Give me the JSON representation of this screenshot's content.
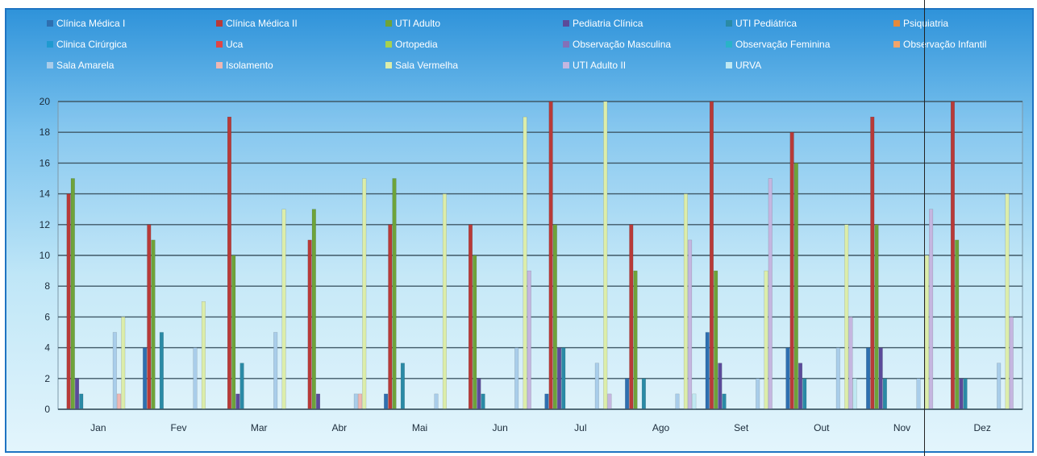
{
  "chart_data": {
    "type": "bar",
    "title": "",
    "xlabel": "",
    "ylabel": "",
    "ylim": [
      0,
      20
    ],
    "yticks": [
      0,
      2,
      4,
      6,
      8,
      10,
      12,
      14,
      16,
      18,
      20
    ],
    "grid": true,
    "legend_position": "top",
    "categories": [
      "Jan",
      "Fev",
      "Mar",
      "Abr",
      "Mai",
      "Jun",
      "Jul",
      "Ago",
      "Set",
      "Out",
      "Nov",
      "Dez"
    ],
    "series": [
      {
        "name": "Clínica Médica I",
        "color": "#2e6fb0",
        "values": [
          0,
          4,
          0,
          0,
          1,
          0,
          1,
          2,
          5,
          4,
          4,
          0
        ]
      },
      {
        "name": "Clínica Médica II",
        "color": "#b83a38",
        "values": [
          14,
          12,
          19,
          11,
          12,
          12,
          20,
          12,
          20,
          18,
          19,
          20
        ]
      },
      {
        "name": "UTI Adulto",
        "color": "#6ea33a",
        "values": [
          15,
          11,
          10,
          13,
          15,
          10,
          12,
          9,
          9,
          16,
          12,
          11
        ]
      },
      {
        "name": "Pediatria Clínica",
        "color": "#5b4a9a",
        "values": [
          2,
          0,
          1,
          1,
          0,
          2,
          4,
          0,
          3,
          3,
          4,
          2
        ]
      },
      {
        "name": "UTI  Pediátrica",
        "color": "#2a8aa6",
        "values": [
          1,
          5,
          3,
          0,
          3,
          1,
          4,
          2,
          1,
          2,
          2,
          2
        ]
      },
      {
        "name": "Psiquiatria",
        "color": "#e58a3c",
        "values": [
          0,
          0,
          0,
          0,
          0,
          0,
          0,
          0,
          0,
          0,
          0,
          0
        ]
      },
      {
        "name": "Clinica Cirúrgica",
        "color": "#1f9ad0",
        "values": [
          0,
          0,
          0,
          0,
          0,
          0,
          0,
          0,
          0,
          0,
          0,
          0
        ]
      },
      {
        "name": "Uca",
        "color": "#e04545",
        "values": [
          0,
          0,
          0,
          0,
          0,
          0,
          0,
          0,
          0,
          0,
          0,
          0
        ]
      },
      {
        "name": "Ortopedia",
        "color": "#a7d14f",
        "values": [
          0,
          0,
          0,
          0,
          0,
          0,
          0,
          0,
          0,
          0,
          0,
          0
        ]
      },
      {
        "name": "Observação Masculina",
        "color": "#8470b8",
        "values": [
          0,
          0,
          0,
          0,
          0,
          0,
          0,
          0,
          0,
          0,
          0,
          0
        ]
      },
      {
        "name": "Observação Feminina",
        "color": "#29b3c8",
        "values": [
          0,
          0,
          0,
          0,
          0,
          0,
          0,
          0,
          0,
          0,
          0,
          0
        ]
      },
      {
        "name": "Observação Infantil",
        "color": "#f2a46a",
        "values": [
          0,
          0,
          0,
          0,
          0,
          0,
          0,
          0,
          0,
          0,
          0,
          0
        ]
      },
      {
        "name": "Sala Amarela",
        "color": "#a9cdea",
        "values": [
          5,
          4,
          5,
          1,
          1,
          4,
          3,
          1,
          2,
          4,
          2,
          3
        ]
      },
      {
        "name": "Isolamento",
        "color": "#efb7b3",
        "values": [
          1,
          0,
          0,
          1,
          0,
          0,
          0,
          0,
          0,
          0,
          0,
          0
        ]
      },
      {
        "name": "Sala Vermelha",
        "color": "#dcedaa",
        "values": [
          6,
          7,
          13,
          15,
          14,
          19,
          20,
          14,
          9,
          12,
          10,
          14
        ]
      },
      {
        "name": "UTI Adulto II",
        "color": "#c5b6e0",
        "values": [
          0,
          0,
          0,
          0,
          0,
          9,
          1,
          11,
          15,
          6,
          13,
          6
        ]
      },
      {
        "name": "URVA",
        "color": "#bfe8f2",
        "values": [
          0,
          0,
          0,
          0,
          0,
          0,
          0,
          1,
          0,
          2,
          0,
          0
        ]
      }
    ]
  }
}
